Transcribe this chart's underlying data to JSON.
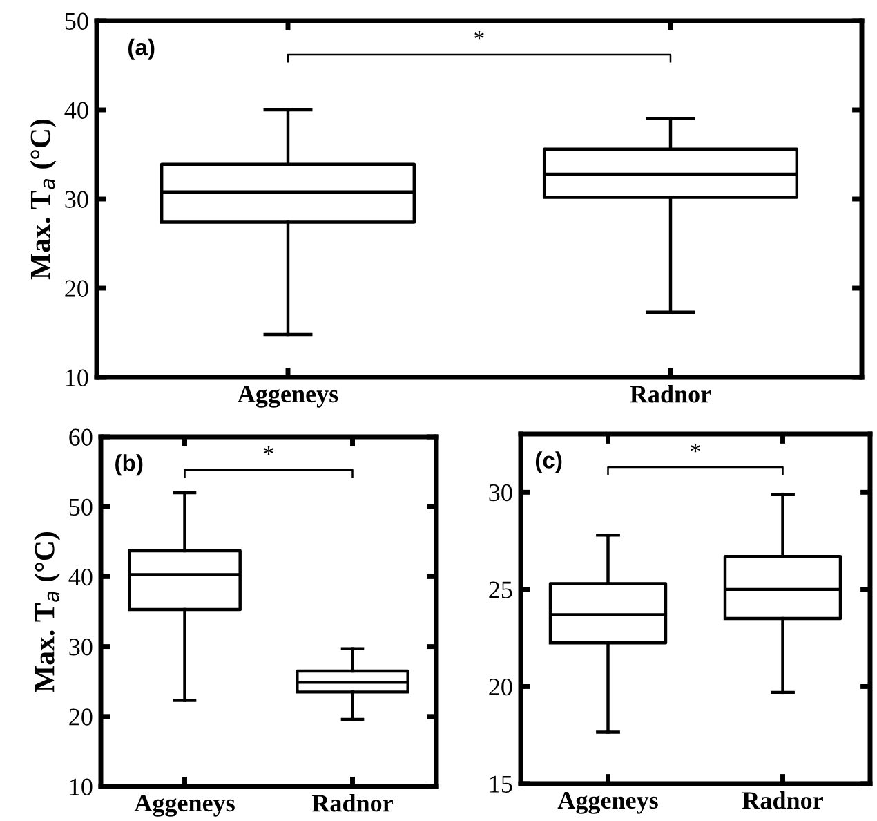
{
  "chart_data": [
    {
      "type": "box",
      "categories": [
        "Aggeneys",
        "Radnor"
      ],
      "ylabel": "Max. T$_{a}$ (°C)",
      "ylim": [
        10,
        50
      ],
      "yticks": [
        10,
        20,
        30,
        40,
        50
      ],
      "annotations": [
        "(a)",
        "*"
      ],
      "boxes": [
        {
          "low": 14.8,
          "q1": 27.4,
          "median": 30.8,
          "q3": 33.9,
          "high": 40
        },
        {
          "low": 17.3,
          "q1": 30.2,
          "median": 32.8,
          "q3": 35.6,
          "high": 39
        }
      ]
    },
    {
      "type": "box",
      "categories": [
        "Aggeneys",
        "Radnor"
      ],
      "ylabel": "Max. T$_{a}$ (°C)",
      "ylim": [
        10,
        60
      ],
      "yticks": [
        10,
        20,
        30,
        40,
        50,
        60
      ],
      "annotations": [
        "(b)",
        "*"
      ],
      "boxes": [
        {
          "low": 22.3,
          "q1": 35.3,
          "median": 40.3,
          "q3": 43.7,
          "high": 52
        },
        {
          "low": 19.6,
          "q1": 23.5,
          "median": 24.9,
          "q3": 26.5,
          "high": 29.7
        }
      ]
    },
    {
      "type": "box",
      "categories": [
        "Aggeneys",
        "Radnor"
      ],
      "ylim": [
        15,
        33
      ],
      "yticks": [
        15,
        20,
        25,
        30
      ],
      "annotations": [
        "(c)",
        "*"
      ],
      "boxes": [
        {
          "low": 17.65,
          "q1": 22.25,
          "median": 23.7,
          "q3": 25.3,
          "high": 27.8
        },
        {
          "low": 19.7,
          "q1": 23.5,
          "median": 25.0,
          "q3": 26.7,
          "high": 29.9
        }
      ]
    }
  ]
}
